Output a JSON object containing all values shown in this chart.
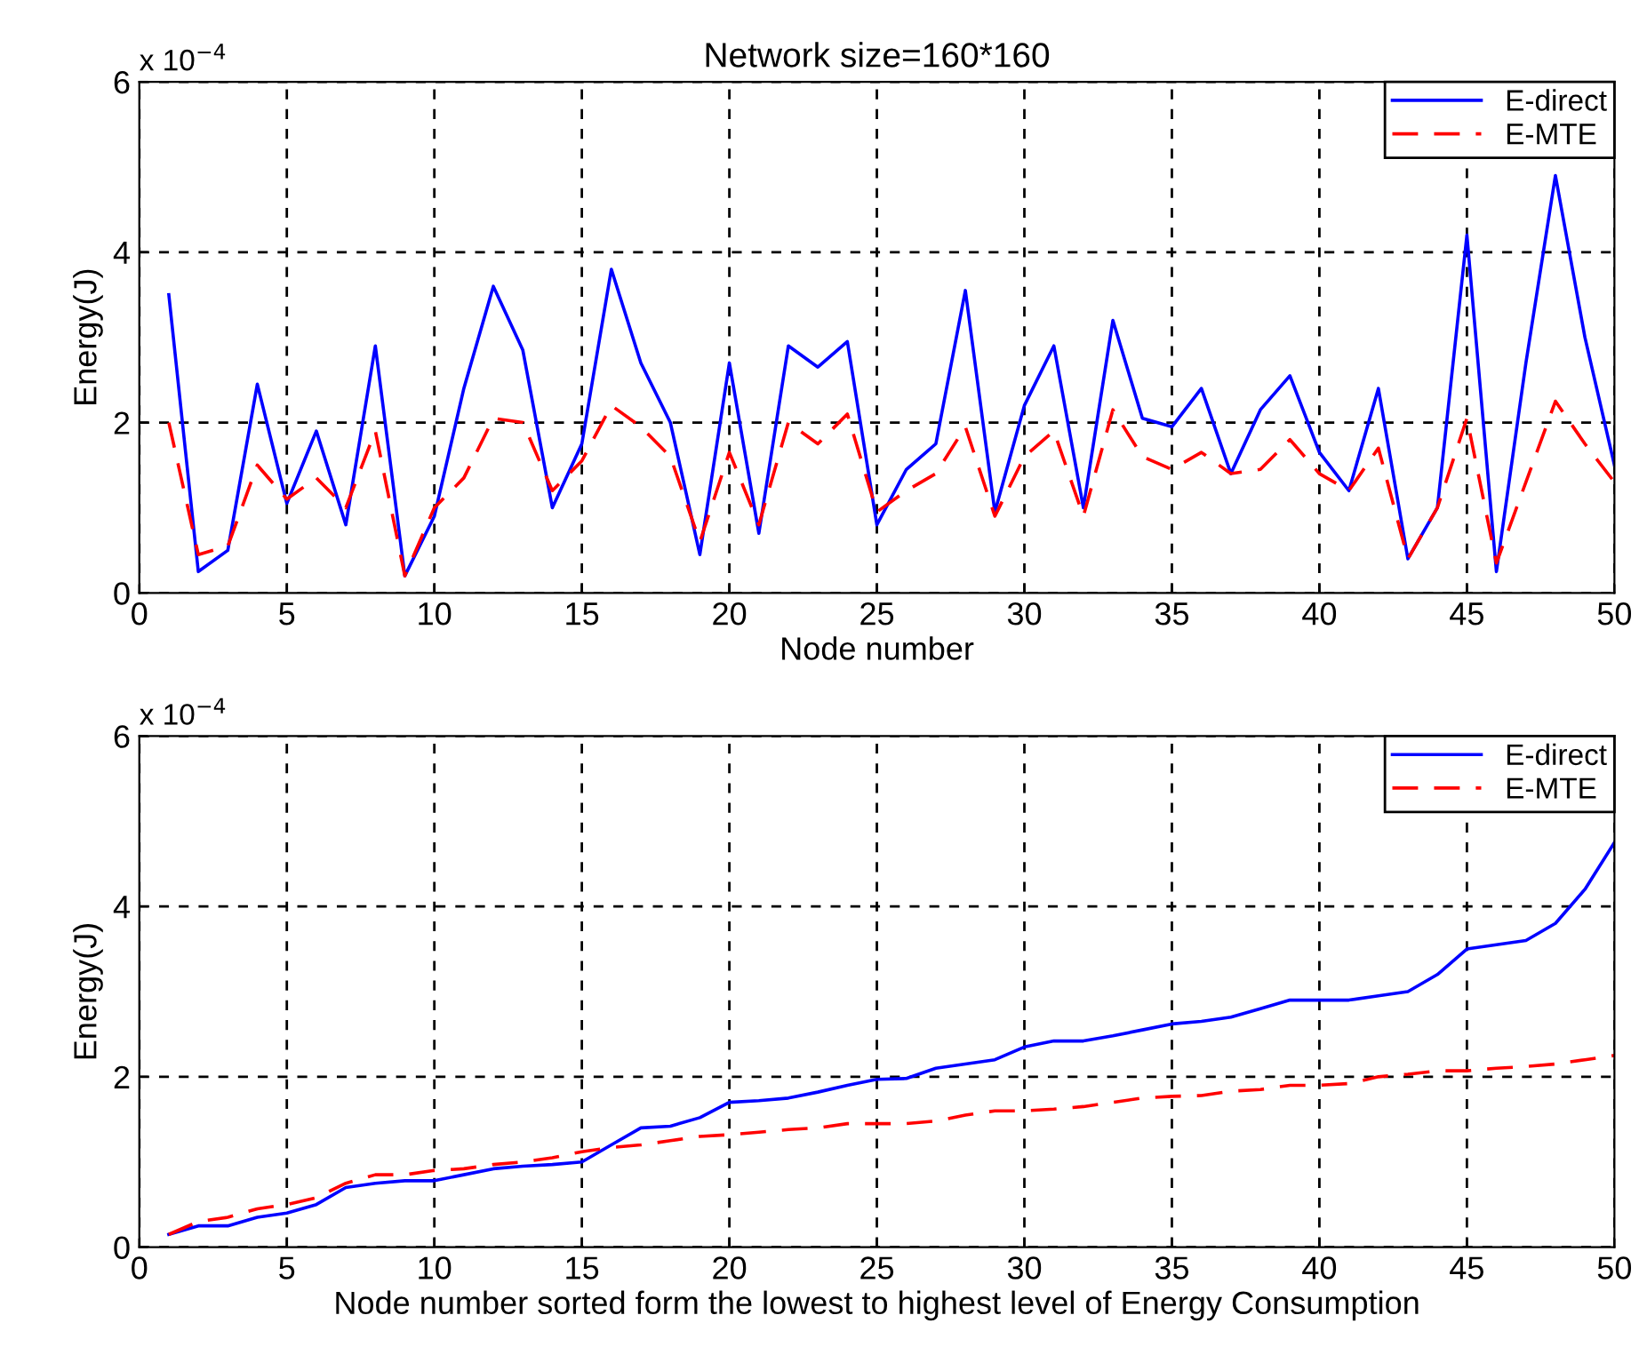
{
  "chart_data": [
    {
      "type": "line",
      "title": "Network size=160*160",
      "xlabel": "Node number",
      "ylabel": "Energy(J)",
      "annotations": [
        "x 10$^{−4}$"
      ],
      "x": [
        1,
        2,
        3,
        4,
        5,
        6,
        7,
        8,
        9,
        10,
        11,
        12,
        13,
        14,
        15,
        16,
        17,
        18,
        19,
        20,
        21,
        22,
        23,
        24,
        25,
        26,
        27,
        28,
        29,
        30,
        31,
        32,
        33,
        34,
        35,
        36,
        37,
        38,
        39,
        40,
        41,
        42,
        43,
        44,
        45,
        46,
        47,
        48,
        49,
        50
      ],
      "series": [
        {
          "name": "E-direct",
          "color": "#0000ff",
          "line_style": "solid",
          "values": [
            3.5,
            0.25,
            0.5,
            2.45,
            1.05,
            1.9,
            0.8,
            2.9,
            0.2,
            0.9,
            2.4,
            3.6,
            2.85,
            1.0,
            1.75,
            3.8,
            2.7,
            2.0,
            0.45,
            2.7,
            0.7,
            2.9,
            2.65,
            2.95,
            0.8,
            1.45,
            1.75,
            3.55,
            0.95,
            2.2,
            2.9,
            1.0,
            3.2,
            2.05,
            1.95,
            2.4,
            1.4,
            2.15,
            2.55,
            1.65,
            1.2,
            2.4,
            0.4,
            1.0,
            4.2,
            0.25,
            2.7,
            4.9,
            3.0,
            1.5
          ]
        },
        {
          "name": "E-MTE",
          "color": "#ff0000",
          "line_style": "dashed",
          "values": [
            2.0,
            0.45,
            0.55,
            1.5,
            1.1,
            1.35,
            1.0,
            1.9,
            0.2,
            1.0,
            1.35,
            2.05,
            2.0,
            1.2,
            1.55,
            2.2,
            1.95,
            1.6,
            0.6,
            1.65,
            0.8,
            2.0,
            1.75,
            2.1,
            0.95,
            1.2,
            1.4,
            1.95,
            0.9,
            1.6,
            1.9,
            0.9,
            2.15,
            1.6,
            1.45,
            1.65,
            1.4,
            1.45,
            1.8,
            1.4,
            1.2,
            1.7,
            0.4,
            1.0,
            2.05,
            0.35,
            1.3,
            2.25,
            1.75,
            1.3
          ]
        }
      ],
      "xlim": [
        0,
        50
      ],
      "xticks": [
        0,
        5,
        10,
        15,
        20,
        25,
        30,
        35,
        40,
        45,
        50
      ],
      "ylim": [
        0,
        6
      ],
      "yticks": [
        0,
        2,
        4,
        6
      ],
      "grid": true,
      "legend": "top right"
    },
    {
      "type": "line",
      "xlabel": "Node number sorted form the lowest to highest level of Energy Consumption",
      "ylabel": "Energy(J)",
      "annotations": [
        "x 10$^{−4}$"
      ],
      "x": [
        1,
        2,
        3,
        4,
        5,
        6,
        7,
        8,
        9,
        10,
        11,
        12,
        13,
        14,
        15,
        16,
        17,
        18,
        19,
        20,
        21,
        22,
        23,
        24,
        25,
        26,
        27,
        28,
        29,
        30,
        31,
        32,
        33,
        34,
        35,
        36,
        37,
        38,
        39,
        40,
        41,
        42,
        43,
        44,
        45,
        46,
        47,
        48,
        49,
        50
      ],
      "series": [
        {
          "name": "E-direct",
          "color": "#0000ff",
          "line_style": "solid",
          "values": [
            0.15,
            0.25,
            0.25,
            0.35,
            0.4,
            0.5,
            0.7,
            0.75,
            0.78,
            0.78,
            0.85,
            0.92,
            0.95,
            0.97,
            1.0,
            1.2,
            1.4,
            1.42,
            1.52,
            1.7,
            1.72,
            1.75,
            1.82,
            1.9,
            1.97,
            1.98,
            2.1,
            2.15,
            2.2,
            2.35,
            2.42,
            2.42,
            2.48,
            2.55,
            2.62,
            2.65,
            2.7,
            2.8,
            2.9,
            2.9,
            2.9,
            2.95,
            3.0,
            3.2,
            3.5,
            3.55,
            3.6,
            3.8,
            4.2,
            4.75
          ]
        },
        {
          "name": "E-MTE",
          "color": "#ff0000",
          "line_style": "dashed",
          "values": [
            0.15,
            0.3,
            0.35,
            0.45,
            0.5,
            0.58,
            0.75,
            0.85,
            0.85,
            0.9,
            0.92,
            0.97,
            1.0,
            1.05,
            1.12,
            1.17,
            1.2,
            1.25,
            1.3,
            1.32,
            1.35,
            1.38,
            1.4,
            1.45,
            1.45,
            1.45,
            1.48,
            1.55,
            1.6,
            1.6,
            1.62,
            1.65,
            1.7,
            1.75,
            1.77,
            1.78,
            1.83,
            1.85,
            1.9,
            1.9,
            1.92,
            2.0,
            2.03,
            2.07,
            2.07,
            2.1,
            2.12,
            2.15,
            2.2,
            2.25
          ]
        }
      ],
      "xlim": [
        0,
        50
      ],
      "xticks": [
        0,
        5,
        10,
        15,
        20,
        25,
        30,
        35,
        40,
        45,
        50
      ],
      "ylim": [
        0,
        6
      ],
      "yticks": [
        0,
        2,
        4,
        6
      ],
      "grid": true,
      "legend": "top right"
    }
  ]
}
